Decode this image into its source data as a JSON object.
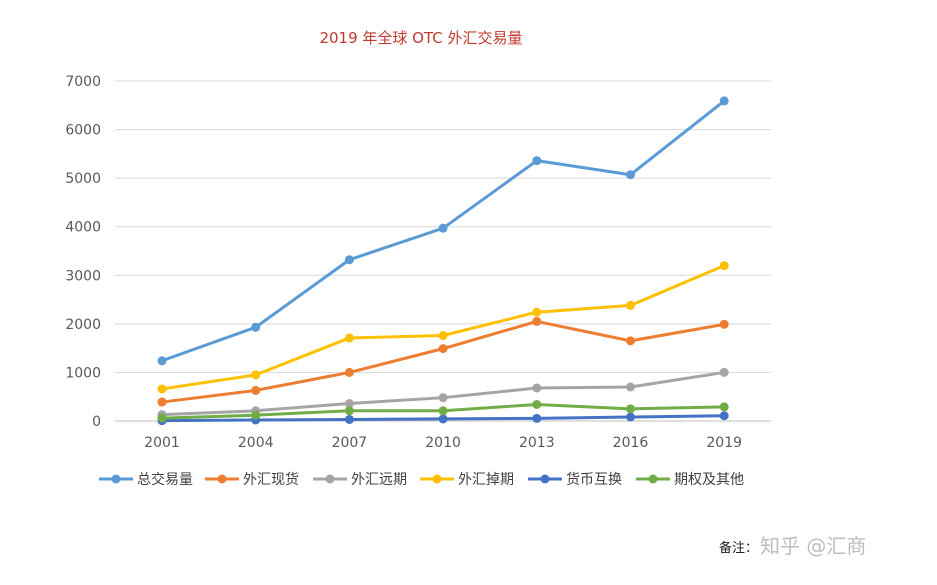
{
  "chart_data": {
    "type": "line",
    "title": "2019 年全球 OTC 外汇交易量",
    "categories": [
      "2001",
      "2004",
      "2007",
      "2010",
      "2013",
      "2016",
      "2019"
    ],
    "ylim": [
      0,
      7000
    ],
    "yticks": [
      "0",
      "1000",
      "2000",
      "3000",
      "4000",
      "5000",
      "6000",
      "7000"
    ],
    "grid": true,
    "legend_position": "bottom",
    "series": [
      {
        "name": "总交易量",
        "color": "#5b9bd5",
        "values": [
          1240,
          1930,
          3320,
          3970,
          5360,
          5070,
          6590
        ]
      },
      {
        "name": "外汇现货",
        "color": "#ed7d31",
        "values": [
          390,
          630,
          1000,
          1490,
          2050,
          1650,
          1990
        ]
      },
      {
        "name": "外汇远期",
        "color": "#a5a5a5",
        "values": [
          130,
          210,
          360,
          480,
          680,
          700,
          1000
        ]
      },
      {
        "name": "外汇掉期",
        "color": "#ffc000",
        "values": [
          660,
          950,
          1710,
          1760,
          2240,
          2380,
          3200
        ]
      },
      {
        "name": "货币互换",
        "color": "#4472c4",
        "values": [
          7,
          21,
          31,
          43,
          54,
          82,
          108
        ]
      },
      {
        "name": "期权及其他",
        "color": "#70ad47",
        "values": [
          60,
          120,
          210,
          210,
          340,
          250,
          290
        ]
      }
    ]
  },
  "note": {
    "label": "备注：",
    "watermark": "知乎 @汇商"
  }
}
